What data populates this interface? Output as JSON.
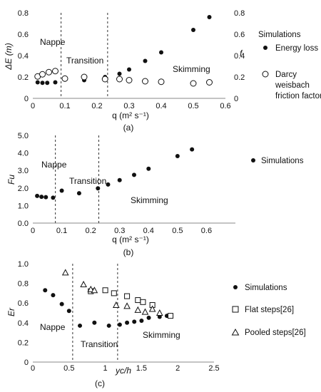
{
  "chart_data": [
    {
      "id": "a",
      "type": "scatter",
      "caption": "(a)",
      "xlabel": "q (m² s⁻¹)",
      "ylabel": "ΔE (m)",
      "y2label": "f",
      "xlim": [
        0,
        0.6
      ],
      "ylim": [
        0,
        0.8
      ],
      "y2lim": [
        0,
        0.8
      ],
      "xticks": [
        "0",
        "0.1",
        "0.2",
        "0.3",
        "0.4",
        "0.5",
        "0.6"
      ],
      "yticks": [
        "0",
        "0.2",
        "0.4",
        "0.6",
        "0.8"
      ],
      "y2ticks": [
        "0",
        "0.2",
        "0.4",
        "0.6",
        "0.8"
      ],
      "vlines": [
        0.088,
        0.233
      ],
      "regions": [
        "Nappe",
        "Transition",
        "Skimming"
      ],
      "legend_title": "Simulations",
      "series": [
        {
          "name": "Energy loss",
          "marker": "filled-circle",
          "points": [
            [
              0.015,
              0.15
            ],
            [
              0.03,
              0.145
            ],
            [
              0.045,
              0.145
            ],
            [
              0.07,
              0.15
            ],
            [
              0.1,
              0.175
            ],
            [
              0.16,
              0.17
            ],
            [
              0.225,
              0.2
            ],
            [
              0.27,
              0.23
            ],
            [
              0.3,
              0.27
            ],
            [
              0.35,
              0.35
            ],
            [
              0.4,
              0.43
            ],
            [
              0.5,
              0.64
            ],
            [
              0.55,
              0.76
            ]
          ]
        },
        {
          "name": "Darcy weisbach friction factor",
          "marker": "open-circle",
          "points": [
            [
              0.015,
              0.205
            ],
            [
              0.03,
              0.225
            ],
            [
              0.05,
              0.245
            ],
            [
              0.07,
              0.255
            ],
            [
              0.1,
              0.185
            ],
            [
              0.16,
              0.2
            ],
            [
              0.225,
              0.18
            ],
            [
              0.27,
              0.18
            ],
            [
              0.3,
              0.17
            ],
            [
              0.35,
              0.16
            ],
            [
              0.4,
              0.155
            ],
            [
              0.5,
              0.14
            ],
            [
              0.55,
              0.15
            ]
          ]
        }
      ]
    },
    {
      "id": "b",
      "type": "scatter",
      "caption": "(b)",
      "xlabel": "q (m² s⁻¹)",
      "ylabel": "Fu",
      "xlim": [
        0,
        0.7
      ],
      "ylim": [
        0,
        5
      ],
      "xticks": [
        "0",
        "0.1",
        "0.2",
        "0.3",
        "0.4",
        "0.5",
        "0.6"
      ],
      "yticks": [
        "0.0",
        "1.0",
        "2.0",
        "3.0",
        "4.0",
        "5.0"
      ],
      "vlines": [
        0.078,
        0.228
      ],
      "regions": [
        "Nappe",
        "Transition",
        "Skimming"
      ],
      "series": [
        {
          "name": "Simulations",
          "marker": "filled-circle",
          "points": [
            [
              0.015,
              1.55
            ],
            [
              0.03,
              1.5
            ],
            [
              0.045,
              1.48
            ],
            [
              0.07,
              1.45
            ],
            [
              0.1,
              1.85
            ],
            [
              0.16,
              1.7
            ],
            [
              0.225,
              1.98
            ],
            [
              0.26,
              2.2
            ],
            [
              0.3,
              2.45
            ],
            [
              0.35,
              2.75
            ],
            [
              0.4,
              3.1
            ],
            [
              0.5,
              3.82
            ],
            [
              0.55,
              4.2
            ]
          ]
        }
      ]
    },
    {
      "id": "c",
      "type": "scatter",
      "caption": "(c)",
      "xlabel": "yc/h",
      "ylabel": "Er",
      "xlim": [
        0,
        2.5
      ],
      "ylim": [
        0,
        1.0
      ],
      "xticks": [
        "0",
        "0.5",
        "1",
        "1.5",
        "2",
        "2.5"
      ],
      "yticks": [
        "0",
        "0.2",
        "0.4",
        "0.6",
        "0.8",
        "1.0"
      ],
      "vlines": [
        0.55,
        1.17
      ],
      "regions": [
        "Nappe",
        "Transition",
        "Skimming"
      ],
      "series": [
        {
          "name": "Simulations",
          "marker": "filled-circle",
          "points": [
            [
              0.17,
              0.73
            ],
            [
              0.28,
              0.68
            ],
            [
              0.4,
              0.59
            ],
            [
              0.5,
              0.52
            ],
            [
              0.65,
              0.37
            ],
            [
              0.85,
              0.4
            ],
            [
              1.05,
              0.37
            ],
            [
              1.2,
              0.38
            ],
            [
              1.3,
              0.4
            ],
            [
              1.4,
              0.41
            ],
            [
              1.5,
              0.42
            ],
            [
              1.6,
              0.45
            ],
            [
              1.75,
              0.46
            ],
            [
              1.85,
              0.47
            ]
          ]
        },
        {
          "name": "Flat steps[26]",
          "marker": "open-square",
          "points": [
            [
              0.8,
              0.72
            ],
            [
              1.0,
              0.73
            ],
            [
              1.12,
              0.7
            ],
            [
              1.3,
              0.67
            ],
            [
              1.45,
              0.63
            ],
            [
              1.52,
              0.61
            ],
            [
              1.65,
              0.58
            ],
            [
              1.9,
              0.47
            ]
          ]
        },
        {
          "name": "Pooled steps[26]",
          "marker": "open-triangle",
          "points": [
            [
              0.45,
              0.91
            ],
            [
              0.7,
              0.79
            ],
            [
              0.8,
              0.74
            ],
            [
              0.85,
              0.73
            ],
            [
              1.15,
              0.58
            ],
            [
              1.3,
              0.57
            ],
            [
              1.45,
              0.53
            ],
            [
              1.55,
              0.51
            ],
            [
              1.65,
              0.54
            ],
            [
              1.75,
              0.5
            ]
          ]
        }
      ]
    }
  ]
}
